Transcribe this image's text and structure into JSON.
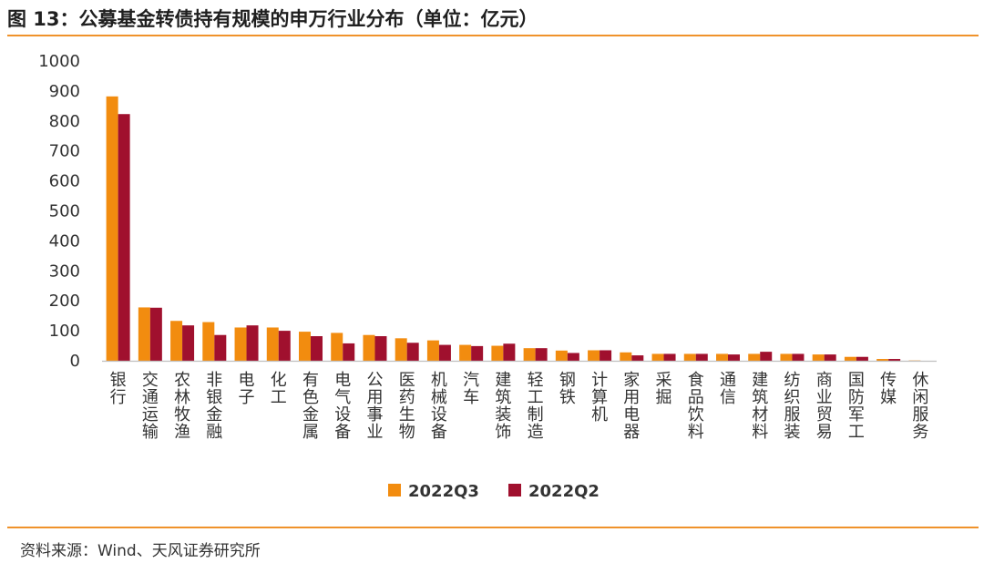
{
  "title": "图 13：公募基金转债持有规模的申万行业分布（单位：亿元）",
  "source": "资料来源：Wind、天风证券研究所",
  "colors": {
    "accent_rule": "#f0922b",
    "series_q3": "#f28c0f",
    "series_q2": "#a0102e"
  },
  "chart_data": {
    "type": "bar",
    "categories": [
      "银行",
      "交通运输",
      "农林牧渔",
      "非银金融",
      "电子",
      "化工",
      "有色金属",
      "电气设备",
      "公用事业",
      "医药生物",
      "机械设备",
      "汽车",
      "建筑装饰",
      "轻工制造",
      "钢铁",
      "计算机",
      "家用电器",
      "采掘",
      "食品饮料",
      "通信",
      "建筑材料",
      "纺织服装",
      "商业贸易",
      "国防军工",
      "传媒",
      "休闲服务"
    ],
    "series": [
      {
        "name": "2022Q3",
        "values": [
          882,
          178,
          133,
          129,
          111,
          111,
          97,
          93,
          86,
          75,
          68,
          53,
          50,
          42,
          34,
          35,
          28,
          23,
          23,
          23,
          23,
          23,
          21,
          13,
          6,
          1
        ]
      },
      {
        "name": "2022Q2",
        "values": [
          823,
          177,
          118,
          86,
          118,
          100,
          82,
          58,
          82,
          60,
          53,
          49,
          57,
          42,
          26,
          35,
          18,
          23,
          23,
          21,
          30,
          23,
          21,
          13,
          6,
          0
        ]
      }
    ],
    "yticks": [
      0,
      100,
      200,
      300,
      400,
      500,
      600,
      700,
      800,
      900,
      1000
    ],
    "ylim": [
      0,
      1000
    ],
    "legend_position": "bottom",
    "grid": false
  }
}
